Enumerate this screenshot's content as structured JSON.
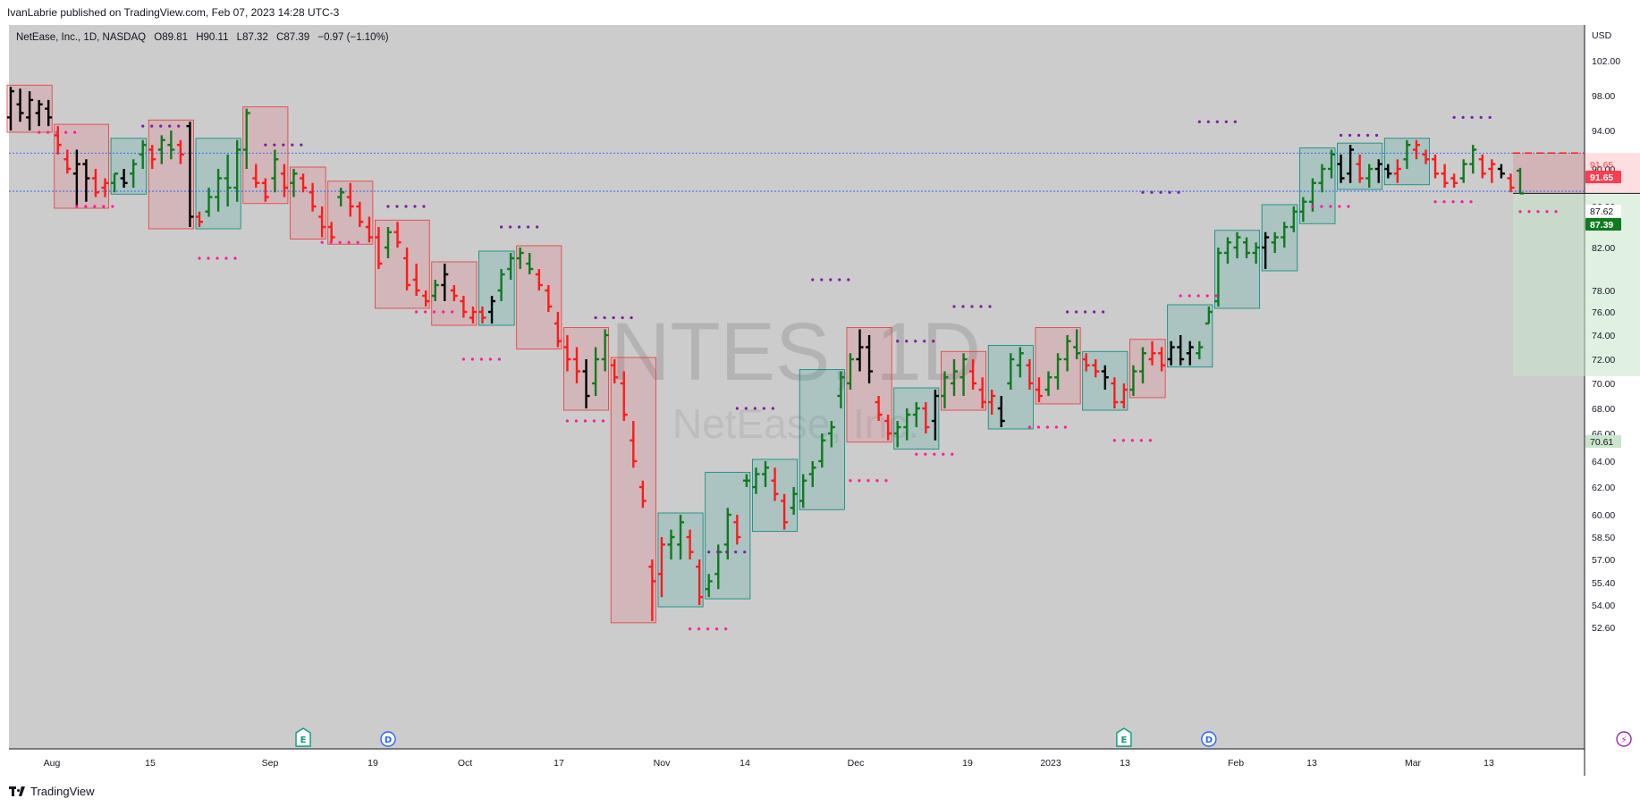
{
  "header": {
    "publisher_line": "IvanLabrie published on TradingView.com, Feb 07, 2023 14:28 UTC-3"
  },
  "footer": {
    "brand": "TradingView"
  },
  "colors": {
    "up": "#0f7a1e",
    "down": "#ff1a1a",
    "neutral": "#000000",
    "bg": "#cccccc",
    "axis_bg": "#ffffff"
  },
  "chart_data": {
    "type": "ohlc-bar",
    "symbol_line": {
      "name": "NetEase, Inc., 1D, NASDAQ",
      "o": "O89.81",
      "h": "H90.11",
      "l": "L87.32",
      "c": "C87.39",
      "chg": "−0.97 (−1.10%)"
    },
    "watermark": {
      "ticker": "NTES, 1D",
      "name": "NetEase, Inc."
    },
    "currency": "USD",
    "y_ticks": [
      "102.00",
      "98.00",
      "94.00",
      "90.00",
      "86.00",
      "82.00",
      "78.00",
      "76.00",
      "74.00",
      "72.00",
      "70.00",
      "68.00",
      "66.00",
      "64.00",
      "62.00",
      "60.00",
      "58.50",
      "57.00",
      "55.40",
      "54.00",
      "52.60"
    ],
    "x_labels": [
      "Aug",
      "15",
      "Sep",
      "19",
      "Oct",
      "17",
      "Nov",
      "14",
      "Dec",
      "19",
      "2023",
      "13",
      "Feb",
      "13",
      "Mar",
      "13"
    ],
    "price_labels": [
      {
        "text": "91.65",
        "value": 91.65,
        "color": "#ff3b4e",
        "style": "plain"
      },
      {
        "text": "91.65",
        "value": 91.65,
        "color": "#ff3b4e",
        "style": "filled"
      },
      {
        "text": "87.62",
        "value": 87.62,
        "color": "#333333",
        "style": "plain"
      },
      {
        "text": "87.39",
        "value": 87.39,
        "color": "#0f7a1e",
        "style": "filled"
      },
      {
        "text": "70.61",
        "value": 70.61,
        "color": "#c8e6c9",
        "style": "light"
      }
    ],
    "horizontal_levels": [
      91.65,
      87.62
    ],
    "events": [
      {
        "letter": "E",
        "x_index": 31
      },
      {
        "letter": "D",
        "x_index": 40
      },
      {
        "letter": "E",
        "x_index": 118
      },
      {
        "letter": "D",
        "x_index": 127
      },
      {
        "letter": "⚡",
        "x_index": 171
      },
      {
        "letter": "E",
        "x_index": 181
      }
    ],
    "bars": [
      [
        0,
        99.0,
        95.5,
        94.0,
        98.5,
        "k"
      ],
      [
        1,
        98.8,
        97.0,
        95.0,
        96.0,
        "k"
      ],
      [
        2,
        98.5,
        95.5,
        94.0,
        97.5,
        "k"
      ],
      [
        3,
        97.5,
        96.0,
        94.5,
        97.0,
        "k"
      ],
      [
        4,
        97.5,
        96.5,
        94.5,
        95.5,
        "k"
      ],
      [
        5,
        94.5,
        93.5,
        91.5,
        92.5,
        "r"
      ],
      [
        6,
        92.0,
        91.0,
        89.5,
        90.0,
        "r"
      ],
      [
        7,
        92.0,
        89.5,
        86.0,
        90.5,
        "k"
      ],
      [
        8,
        91.0,
        90.5,
        86.5,
        89.0,
        "k"
      ],
      [
        9,
        90.0,
        89.0,
        87.0,
        87.5,
        "r"
      ],
      [
        10,
        89.0,
        88.0,
        87.0,
        88.5,
        "r"
      ],
      [
        11,
        89.5,
        88.5,
        87.5,
        89.5,
        "g"
      ],
      [
        12,
        90.0,
        89.0,
        88.0,
        88.5,
        "k"
      ],
      [
        13,
        91.0,
        89.5,
        88.0,
        90.5,
        "g"
      ],
      [
        14,
        93.0,
        91.5,
        90.0,
        92.5,
        "g"
      ],
      [
        15,
        92.5,
        92.0,
        90.0,
        91.0,
        "r"
      ],
      [
        16,
        93.5,
        92.0,
        90.5,
        93.0,
        "g"
      ],
      [
        17,
        94.0,
        92.5,
        91.0,
        92.0,
        "g"
      ],
      [
        18,
        93.0,
        92.5,
        90.5,
        91.5,
        "r"
      ],
      [
        19,
        95.0,
        94.5,
        84.0,
        85.0,
        "k"
      ],
      [
        20,
        85.5,
        85.0,
        84.0,
        84.5,
        "r"
      ],
      [
        21,
        88.0,
        85.5,
        85.0,
        87.0,
        "g"
      ],
      [
        22,
        90.0,
        87.0,
        85.5,
        89.0,
        "g"
      ],
      [
        23,
        91.5,
        89.0,
        86.0,
        88.0,
        "g"
      ],
      [
        24,
        93.0,
        88.0,
        86.5,
        92.0,
        "g"
      ],
      [
        25,
        96.5,
        92.0,
        90.0,
        96.0,
        "g"
      ],
      [
        26,
        90.5,
        89.0,
        88.0,
        88.5,
        "r"
      ],
      [
        27,
        89.0,
        88.5,
        86.5,
        87.0,
        "r"
      ],
      [
        28,
        92.0,
        89.0,
        87.5,
        91.0,
        "g"
      ],
      [
        29,
        90.5,
        89.5,
        87.0,
        88.0,
        "r"
      ],
      [
        30,
        90.0,
        88.5,
        87.0,
        89.5,
        "g"
      ],
      [
        31,
        89.5,
        89.0,
        87.5,
        88.0,
        "r"
      ],
      [
        32,
        88.5,
        87.5,
        85.5,
        86.0,
        "r"
      ],
      [
        33,
        86.0,
        85.0,
        83.0,
        84.0,
        "r"
      ],
      [
        34,
        84.5,
        84.0,
        82.5,
        83.0,
        "r"
      ],
      [
        35,
        88.0,
        87.0,
        86.0,
        87.5,
        "g"
      ],
      [
        36,
        88.5,
        87.0,
        85.0,
        86.0,
        "r"
      ],
      [
        37,
        86.5,
        86.0,
        84.0,
        84.5,
        "r"
      ],
      [
        38,
        85.0,
        84.0,
        82.5,
        83.0,
        "r"
      ],
      [
        39,
        84.0,
        83.0,
        80.0,
        80.5,
        "r"
      ],
      [
        40,
        84.0,
        82.0,
        81.0,
        83.5,
        "g"
      ],
      [
        41,
        84.5,
        83.5,
        82.0,
        82.5,
        "r"
      ],
      [
        42,
        82.0,
        81.0,
        78.0,
        78.5,
        "r"
      ],
      [
        43,
        80.5,
        79.0,
        77.5,
        78.0,
        "r"
      ],
      [
        44,
        78.0,
        77.5,
        76.5,
        77.0,
        "r"
      ],
      [
        45,
        79.0,
        77.5,
        77.0,
        78.5,
        "g"
      ],
      [
        46,
        80.5,
        78.5,
        77.0,
        79.5,
        "k"
      ],
      [
        47,
        78.5,
        78.0,
        77.0,
        77.5,
        "r"
      ],
      [
        48,
        77.5,
        77.0,
        75.5,
        76.0,
        "r"
      ],
      [
        49,
        76.5,
        75.5,
        75.0,
        76.0,
        "r"
      ],
      [
        50,
        76.5,
        76.0,
        75.0,
        75.5,
        "r"
      ],
      [
        51,
        77.5,
        76.0,
        75.0,
        77.0,
        "k"
      ],
      [
        52,
        80.0,
        78.0,
        77.0,
        79.5,
        "g"
      ],
      [
        53,
        81.5,
        80.0,
        79.0,
        81.0,
        "g"
      ],
      [
        54,
        82.0,
        81.0,
        80.0,
        81.5,
        "g"
      ],
      [
        55,
        81.5,
        80.5,
        79.5,
        80.0,
        "g"
      ],
      [
        56,
        80.0,
        79.5,
        78.0,
        78.5,
        "r"
      ],
      [
        57,
        78.5,
        78.0,
        76.0,
        76.5,
        "r"
      ],
      [
        58,
        76.0,
        75.0,
        73.0,
        73.5,
        "r"
      ],
      [
        59,
        74.0,
        73.0,
        71.0,
        72.0,
        "r"
      ],
      [
        60,
        73.0,
        72.0,
        70.0,
        71.0,
        "r"
      ],
      [
        61,
        72.0,
        71.0,
        68.0,
        69.0,
        "k"
      ],
      [
        62,
        73.0,
        70.0,
        69.0,
        72.0,
        "g"
      ],
      [
        63,
        74.5,
        72.0,
        71.0,
        74.0,
        "g"
      ],
      [
        64,
        72.0,
        71.5,
        70.0,
        70.5,
        "r"
      ],
      [
        65,
        71.0,
        70.0,
        67.0,
        67.5,
        "r"
      ],
      [
        66,
        67.0,
        65.5,
        63.5,
        64.0,
        "r"
      ],
      [
        67,
        62.5,
        62.0,
        60.5,
        61.0,
        "r"
      ],
      [
        68,
        57.0,
        56.5,
        53.0,
        55.5,
        "r"
      ],
      [
        69,
        58.5,
        56.0,
        54.5,
        58.0,
        "r"
      ],
      [
        70,
        59.0,
        58.0,
        57.0,
        58.5,
        "g"
      ],
      [
        71,
        60.0,
        58.0,
        57.0,
        59.5,
        "g"
      ],
      [
        72,
        59.0,
        58.5,
        57.0,
        57.5,
        "r"
      ],
      [
        73,
        57.0,
        56.5,
        54.0,
        54.5,
        "r"
      ],
      [
        74,
        56.0,
        55.0,
        54.5,
        55.5,
        "g"
      ],
      [
        75,
        58.0,
        56.0,
        55.0,
        57.5,
        "g"
      ],
      [
        76,
        60.5,
        58.0,
        57.0,
        60.0,
        "g"
      ],
      [
        77,
        60.0,
        59.5,
        58.0,
        58.5,
        "r"
      ],
      [
        78,
        63.0,
        62.5,
        62.0,
        62.5,
        "g"
      ],
      [
        79,
        63.5,
        62.0,
        61.5,
        63.0,
        "g"
      ],
      [
        80,
        64.0,
        63.0,
        62.0,
        63.5,
        "g"
      ],
      [
        81,
        63.5,
        62.5,
        61.0,
        61.5,
        "r"
      ],
      [
        82,
        61.5,
        61.0,
        59.0,
        59.5,
        "r"
      ],
      [
        83,
        62.0,
        60.5,
        60.0,
        61.5,
        "g"
      ],
      [
        84,
        63.0,
        61.0,
        60.5,
        62.5,
        "g"
      ],
      [
        85,
        64.0,
        63.0,
        62.0,
        63.5,
        "g"
      ],
      [
        86,
        66.0,
        64.0,
        63.5,
        65.5,
        "g"
      ],
      [
        87,
        67.0,
        66.0,
        65.0,
        66.5,
        "g"
      ],
      [
        88,
        71.0,
        69.0,
        68.0,
        70.5,
        "g"
      ],
      [
        89,
        72.5,
        70.0,
        69.5,
        72.0,
        "g"
      ],
      [
        90,
        74.5,
        72.0,
        71.0,
        73.0,
        "k"
      ],
      [
        91,
        74.0,
        73.0,
        70.0,
        71.0,
        "k"
      ],
      [
        92,
        69.0,
        68.5,
        67.0,
        67.5,
        "r"
      ],
      [
        93,
        67.5,
        67.0,
        65.5,
        66.0,
        "r"
      ],
      [
        94,
        67.0,
        66.0,
        65.0,
        66.5,
        "g"
      ],
      [
        95,
        68.0,
        66.5,
        65.5,
        67.5,
        "g"
      ],
      [
        96,
        68.5,
        67.5,
        66.5,
        68.0,
        "g"
      ],
      [
        97,
        68.5,
        68.0,
        66.0,
        66.5,
        "r"
      ],
      [
        98,
        69.5,
        67.0,
        65.5,
        69.0,
        "k"
      ],
      [
        99,
        71.0,
        69.0,
        68.0,
        70.5,
        "g"
      ],
      [
        100,
        72.0,
        70.0,
        69.0,
        71.0,
        "g"
      ],
      [
        101,
        72.5,
        70.5,
        69.0,
        72.0,
        "g"
      ],
      [
        102,
        72.0,
        71.0,
        69.5,
        70.0,
        "r"
      ],
      [
        103,
        70.5,
        69.5,
        68.0,
        68.5,
        "r"
      ],
      [
        104,
        69.5,
        68.5,
        67.5,
        69.0,
        "r"
      ],
      [
        105,
        69.0,
        68.0,
        66.5,
        67.0,
        "k"
      ],
      [
        106,
        72.5,
        70.0,
        69.5,
        72.0,
        "g"
      ],
      [
        107,
        73.0,
        71.5,
        70.5,
        72.5,
        "g"
      ],
      [
        108,
        72.0,
        71.5,
        69.5,
        70.0,
        "r"
      ],
      [
        109,
        70.5,
        69.5,
        68.5,
        69.0,
        "r"
      ],
      [
        110,
        71.0,
        69.5,
        69.0,
        70.5,
        "g"
      ],
      [
        111,
        72.5,
        70.5,
        69.5,
        72.0,
        "g"
      ],
      [
        112,
        74.0,
        72.0,
        71.0,
        73.5,
        "g"
      ],
      [
        113,
        74.5,
        73.0,
        72.0,
        72.5,
        "g"
      ],
      [
        114,
        72.5,
        72.0,
        71.0,
        71.5,
        "r"
      ],
      [
        115,
        72.0,
        71.5,
        70.5,
        71.0,
        "r"
      ],
      [
        116,
        71.5,
        71.0,
        69.5,
        70.5,
        "k"
      ],
      [
        117,
        70.5,
        70.0,
        68.0,
        68.5,
        "r"
      ],
      [
        118,
        70.0,
        68.5,
        68.0,
        69.5,
        "r"
      ],
      [
        119,
        71.5,
        69.5,
        69.0,
        71.0,
        "g"
      ],
      [
        120,
        73.0,
        71.0,
        70.0,
        72.5,
        "g"
      ],
      [
        121,
        73.5,
        72.0,
        71.5,
        72.5,
        "r"
      ],
      [
        122,
        73.0,
        72.5,
        71.0,
        71.5,
        "r"
      ],
      [
        123,
        73.5,
        72.0,
        71.5,
        73.0,
        "k"
      ],
      [
        124,
        74.0,
        73.0,
        71.5,
        72.0,
        "k"
      ],
      [
        125,
        73.5,
        72.5,
        71.5,
        73.0,
        "k"
      ],
      [
        126,
        73.5,
        72.5,
        72.0,
        73.0,
        "g"
      ],
      [
        127,
        76.5,
        75.0,
        75.0,
        76.0,
        "g"
      ],
      [
        128,
        82.0,
        77.0,
        76.5,
        81.5,
        "g"
      ],
      [
        129,
        83.0,
        81.5,
        80.5,
        82.5,
        "g"
      ],
      [
        130,
        83.5,
        82.0,
        81.0,
        83.0,
        "g"
      ],
      [
        131,
        83.0,
        82.5,
        81.0,
        81.5,
        "g"
      ],
      [
        132,
        82.5,
        81.5,
        80.5,
        82.0,
        "g"
      ],
      [
        133,
        83.5,
        82.0,
        80.0,
        83.0,
        "k"
      ],
      [
        134,
        83.5,
        82.5,
        81.5,
        83.0,
        "g"
      ],
      [
        135,
        84.5,
        83.0,
        82.0,
        84.0,
        "g"
      ],
      [
        136,
        86.0,
        84.0,
        83.5,
        85.5,
        "g"
      ],
      [
        137,
        87.0,
        85.5,
        84.5,
        86.5,
        "g"
      ],
      [
        138,
        89.0,
        86.5,
        85.5,
        88.5,
        "g"
      ],
      [
        139,
        90.5,
        88.5,
        87.5,
        90.0,
        "g"
      ],
      [
        140,
        92.0,
        90.0,
        89.0,
        91.5,
        "g"
      ],
      [
        141,
        91.5,
        90.5,
        88.5,
        89.0,
        "k"
      ],
      [
        142,
        92.5,
        89.5,
        88.5,
        92.0,
        "k"
      ],
      [
        143,
        91.5,
        90.5,
        88.5,
        89.0,
        "r"
      ],
      [
        144,
        90.5,
        89.0,
        88.0,
        90.0,
        "g"
      ],
      [
        145,
        91.0,
        90.0,
        88.5,
        90.5,
        "k"
      ],
      [
        146,
        90.5,
        90.0,
        89.0,
        89.5,
        "k"
      ],
      [
        147,
        91.0,
        89.5,
        88.5,
        90.0,
        "r"
      ],
      [
        148,
        93.0,
        91.0,
        90.0,
        92.5,
        "g"
      ],
      [
        149,
        93.0,
        92.0,
        91.0,
        92.5,
        "r"
      ],
      [
        150,
        92.0,
        91.5,
        90.5,
        91.0,
        "r"
      ],
      [
        151,
        91.5,
        91.0,
        89.0,
        89.5,
        "r"
      ],
      [
        152,
        90.5,
        89.5,
        88.0,
        88.5,
        "r"
      ],
      [
        153,
        89.5,
        89.0,
        88.0,
        88.5,
        "r"
      ],
      [
        154,
        91.0,
        89.0,
        88.5,
        90.5,
        "g"
      ],
      [
        155,
        92.5,
        90.5,
        89.5,
        92.0,
        "g"
      ],
      [
        156,
        91.5,
        91.0,
        89.0,
        89.5,
        "r"
      ],
      [
        157,
        91.0,
        90.0,
        88.5,
        90.5,
        "r"
      ],
      [
        158,
        90.5,
        90.0,
        89.0,
        89.5,
        "k"
      ],
      [
        159,
        89.5,
        89.0,
        87.5,
        88.0,
        "r"
      ],
      [
        160,
        90.11,
        89.81,
        87.32,
        87.39,
        "g"
      ]
    ]
  }
}
